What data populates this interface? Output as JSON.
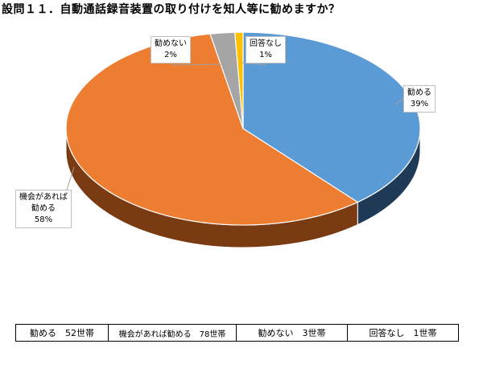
{
  "title": "設問１１．自動通話録音装置の取り付けを知人等に勧めますか？",
  "chart_data": {
    "type": "pie",
    "title": "設問１１．自動通話録音装置の取り付けを知人等に勧めますか？",
    "three_d": true,
    "slices": [
      {
        "label": "勧める",
        "label_lines": [
          "勧める"
        ],
        "percent_label": "39%",
        "value": 52,
        "color": "#5b9bd5",
        "side_color": "#1f3a57"
      },
      {
        "label": "機会があれば勧める",
        "label_lines": [
          "機会があれば",
          "勧める"
        ],
        "percent_label": "58%",
        "value": 78,
        "color": "#ed7d31",
        "side_color": "#7a3a12"
      },
      {
        "label": "勧めない",
        "label_lines": [
          "勧めない"
        ],
        "percent_label": "2%",
        "value": 3,
        "color": "#a5a5a5",
        "side_color": "#555555"
      },
      {
        "label": "回答なし",
        "label_lines": [
          "回答なし"
        ],
        "percent_label": "1%",
        "value": 1,
        "color": "#ffc000",
        "side_color": "#7f6000"
      }
    ]
  },
  "legend_table": [
    "勧める　52世帯",
    "機会があれば勧める　78世帯",
    "勧めない　3世帯",
    "回答なし　1世帯"
  ]
}
